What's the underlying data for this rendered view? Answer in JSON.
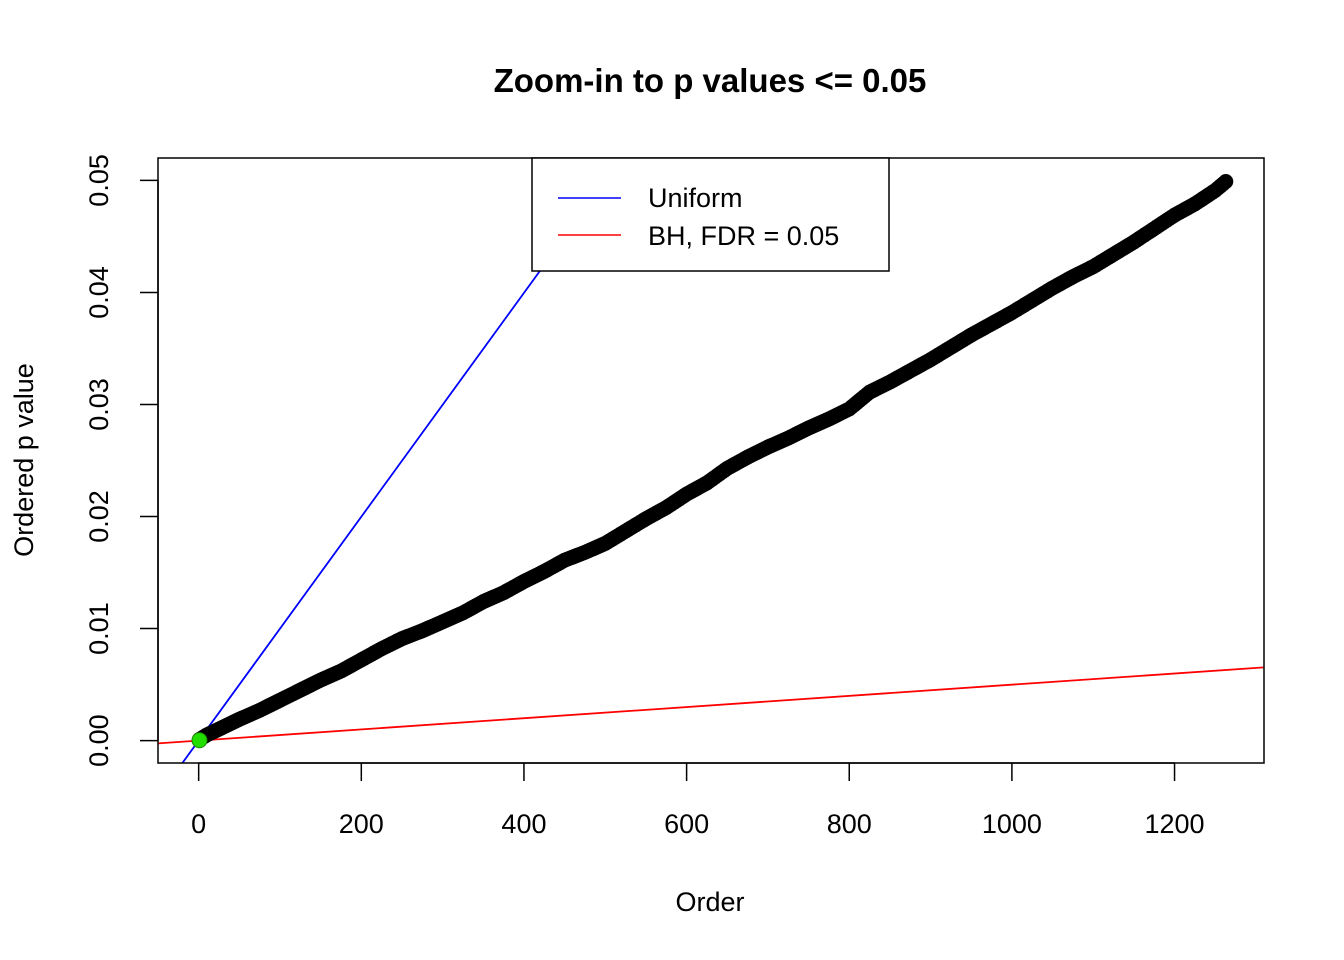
{
  "chart_data": {
    "type": "scatter",
    "title": "Zoom-in to p values <= 0.05",
    "xlabel": "Order",
    "ylabel": "Ordered p value",
    "xlim": [
      -50,
      1310
    ],
    "ylim": [
      -0.002,
      0.052
    ],
    "xticks": [
      0,
      200,
      400,
      600,
      800,
      1000,
      1200
    ],
    "xtick_labels": [
      "0",
      "200",
      "400",
      "600",
      "800",
      "1000",
      "1200"
    ],
    "yticks": [
      0.0,
      0.01,
      0.02,
      0.03,
      0.04,
      0.05
    ],
    "ytick_labels": [
      "0.00",
      "0.01",
      "0.02",
      "0.03",
      "0.04",
      "0.05"
    ],
    "grid": false,
    "legend_position": "top-center",
    "series": [
      {
        "name": "",
        "kind": "points",
        "color": "#000000",
        "x": [
          1,
          10,
          30,
          50,
          75,
          100,
          125,
          150,
          175,
          200,
          225,
          250,
          275,
          300,
          325,
          350,
          375,
          400,
          425,
          450,
          475,
          500,
          525,
          550,
          575,
          600,
          625,
          650,
          675,
          700,
          725,
          750,
          775,
          800,
          825,
          850,
          875,
          900,
          925,
          950,
          975,
          1000,
          1025,
          1050,
          1075,
          1100,
          1125,
          1150,
          1175,
          1200,
          1225,
          1250,
          1263
        ],
        "y": [
          0.0001,
          0.0005,
          0.0012,
          0.0019,
          0.0027,
          0.0036,
          0.0045,
          0.0054,
          0.0062,
          0.0072,
          0.0082,
          0.0091,
          0.0098,
          0.0106,
          0.0114,
          0.0124,
          0.0132,
          0.0142,
          0.0151,
          0.0161,
          0.0168,
          0.0176,
          0.0187,
          0.0198,
          0.0208,
          0.022,
          0.023,
          0.0243,
          0.0253,
          0.0262,
          0.027,
          0.0279,
          0.0287,
          0.0296,
          0.0311,
          0.032,
          0.033,
          0.034,
          0.0351,
          0.0362,
          0.0372,
          0.0382,
          0.0393,
          0.0404,
          0.0414,
          0.0423,
          0.0434,
          0.0445,
          0.0457,
          0.0469,
          0.0479,
          0.0491,
          0.0499
        ]
      },
      {
        "name": "",
        "kind": "highlight-point",
        "color": "#22dd00",
        "x": [
          1
        ],
        "y": [
          3e-05
        ]
      },
      {
        "name": "Uniform",
        "kind": "abline",
        "color": "#0000ff",
        "intercept": 0,
        "slope": 9.99e-05
      },
      {
        "name": "BH, FDR = 0.05",
        "kind": "abline",
        "color": "#ff0000",
        "intercept": 0,
        "slope": 4.99e-06
      }
    ]
  }
}
